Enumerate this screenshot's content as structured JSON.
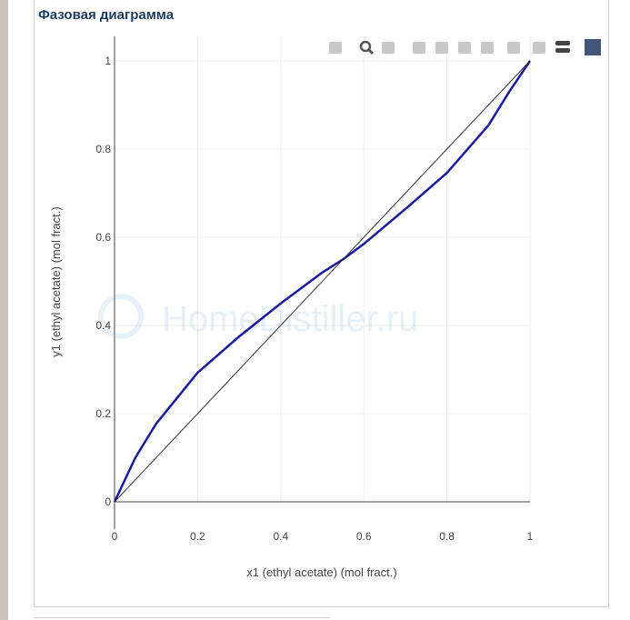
{
  "title": "Фазовая диаграмма",
  "watermark": "HomeDistiller.ru",
  "modebar": [
    "camera-icon",
    "zoom-icon",
    "pan-icon",
    "zoom-in-icon",
    "zoom-out-icon",
    "autoscale-icon",
    "home-icon",
    "spike-lines-icon",
    "hover-closest-icon",
    "hover-compare-icon",
    "plotly-logo-icon"
  ],
  "chart_data": {
    "type": "line",
    "xlabel": "x1 (ethyl acetate) (mol fract.)",
    "ylabel": "y1 (ethyl acetate) (mol fract.)",
    "xlim": [
      0,
      1
    ],
    "ylim": [
      0,
      1
    ],
    "xticks": [
      "0",
      "0.2",
      "0.4",
      "0.6",
      "0.8",
      "1"
    ],
    "yticks": [
      "0",
      "0.2",
      "0.4",
      "0.6",
      "0.8",
      "1"
    ],
    "grid": true,
    "series": [
      {
        "color": "#1a1a9c",
        "x": [
          0,
          0.05,
          0.1,
          0.15,
          0.2,
          0.3,
          0.4,
          0.5,
          0.55,
          0.6,
          0.7,
          0.8,
          0.9,
          0.95,
          1
        ],
        "y": [
          0,
          0.1,
          0.177,
          0.235,
          0.293,
          0.375,
          0.45,
          0.52,
          0.55,
          0.585,
          0.664,
          0.746,
          0.854,
          0.93,
          1
        ]
      },
      {
        "color": "#333333",
        "x": [
          0,
          1
        ],
        "y": [
          0,
          1
        ]
      }
    ]
  }
}
